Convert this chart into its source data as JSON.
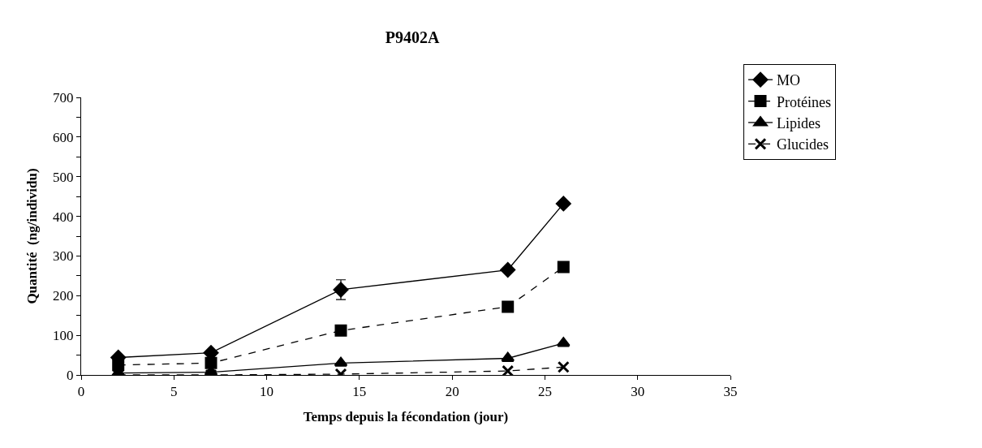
{
  "chart_data": {
    "type": "line",
    "title": "P9402A",
    "xlabel": "Temps depuis la fécondation (jour)",
    "ylabel": "Quantité  (ng/individu)",
    "x": [
      2,
      7,
      14,
      23,
      26
    ],
    "series": [
      {
        "name": "MO",
        "color": "#000000",
        "marker": "diamond",
        "line_style": "solid",
        "values": [
          44,
          56,
          215,
          265,
          432
        ],
        "errors": [
          null,
          null,
          25,
          null,
          null
        ]
      },
      {
        "name": "Protéines",
        "color": "#000000",
        "marker": "square",
        "line_style": "dashed",
        "values": [
          25,
          30,
          112,
          172,
          272
        ]
      },
      {
        "name": "Lipides",
        "color": "#000000",
        "marker": "triangle",
        "line_style": "solid",
        "values": [
          5,
          7,
          30,
          42,
          80
        ]
      },
      {
        "name": "Glucides",
        "color": "#000000",
        "marker": "cross",
        "line_style": "dashed",
        "values": [
          0,
          0,
          2,
          10,
          20
        ]
      }
    ],
    "xlim": [
      0,
      35
    ],
    "xticks": [
      0,
      5,
      10,
      15,
      20,
      25,
      30,
      35
    ],
    "ylim": [
      0,
      700
    ],
    "yticks": [
      0,
      {
        "value": 50,
        "label": null
      },
      100,
      {
        "value": 150,
        "label": null
      },
      200,
      {
        "value": 250,
        "label": null
      },
      300,
      {
        "value": 350,
        "label": null
      },
      400,
      {
        "value": 450,
        "label": null
      },
      500,
      {
        "value": 550,
        "label": null
      },
      600,
      {
        "value": 650,
        "label": null
      },
      700
    ],
    "legend": "top right"
  }
}
